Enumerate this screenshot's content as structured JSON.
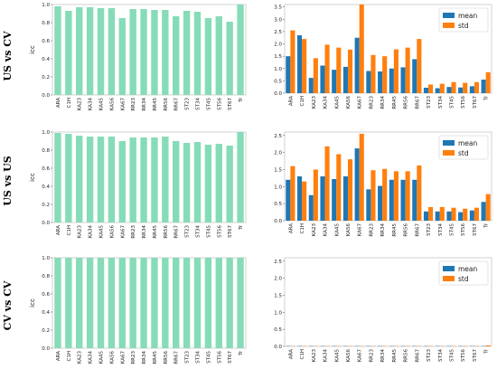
{
  "colors": {
    "icc": "#86dcb7",
    "mean": "#1f77b4",
    "std": "#ff7f0e",
    "axis": "#c8c8c8"
  },
  "rows": [
    {
      "label": "US vs CV"
    },
    {
      "label": "US vs US"
    },
    {
      "label": "CV vs CV"
    }
  ],
  "chart_data": [
    {
      "type": "bar",
      "panel": "icc-us-vs-cv",
      "categories": [
        "ARA",
        "C1H",
        "KA23",
        "KA34",
        "KA45",
        "KA56",
        "KA67",
        "RR23",
        "RR34",
        "RR45",
        "RR56",
        "RR67",
        "ST23",
        "ST34",
        "ST45",
        "ST56",
        "ST67",
        "Tr"
      ],
      "values": [
        0.98,
        0.93,
        0.97,
        0.97,
        0.96,
        0.96,
        0.85,
        0.95,
        0.95,
        0.94,
        0.94,
        0.87,
        0.93,
        0.92,
        0.85,
        0.87,
        0.81,
        1.0
      ],
      "ylabel": "icc",
      "ylim": [
        0,
        1.0
      ],
      "yticks": [
        "0.0",
        "0.2",
        "0.4",
        "0.6",
        "0.8",
        "1.0"
      ]
    },
    {
      "type": "bar",
      "panel": "meanstd-us-vs-cv",
      "categories": [
        "ARA",
        "C1H",
        "KA23",
        "KA34",
        "KA45",
        "KA56",
        "KA67",
        "RR23",
        "RR34",
        "RR45",
        "RR56",
        "RR67",
        "ST23",
        "ST34",
        "ST45",
        "ST56",
        "ST67",
        "Tr"
      ],
      "series": [
        {
          "name": "mean",
          "values": [
            1.5,
            2.35,
            0.62,
            1.12,
            0.95,
            1.07,
            2.25,
            0.9,
            0.88,
            1.0,
            1.05,
            1.38,
            0.22,
            0.2,
            0.25,
            0.23,
            0.28,
            0.55
          ]
        },
        {
          "name": "std",
          "values": [
            2.55,
            2.2,
            1.42,
            1.97,
            1.85,
            1.77,
            3.6,
            1.55,
            1.5,
            1.78,
            1.85,
            2.2,
            0.35,
            0.38,
            0.45,
            0.42,
            0.45,
            0.85
          ]
        }
      ],
      "ylim": [
        0,
        3.6
      ],
      "yticks": [
        "0.0",
        "0.5",
        "1.0",
        "1.5",
        "2.0",
        "2.5",
        "3.0",
        "3.5"
      ],
      "legend": "top-right"
    },
    {
      "type": "bar",
      "panel": "icc-us-vs-us",
      "categories": [
        "ARA",
        "C1H",
        "KA23",
        "KA34",
        "KA45",
        "KA56",
        "KA67",
        "RR23",
        "RR34",
        "RR45",
        "RR56",
        "RR67",
        "ST23",
        "ST34",
        "ST45",
        "ST56",
        "ST67",
        "Tr"
      ],
      "values": [
        0.99,
        0.98,
        0.96,
        0.95,
        0.95,
        0.95,
        0.9,
        0.94,
        0.94,
        0.94,
        0.95,
        0.9,
        0.88,
        0.89,
        0.86,
        0.87,
        0.85,
        1.0
      ],
      "ylabel": "icc",
      "ylim": [
        0,
        1.0
      ],
      "yticks": [
        "0.0",
        "0.2",
        "0.4",
        "0.6",
        "0.8",
        "1.0"
      ]
    },
    {
      "type": "bar",
      "panel": "meanstd-us-vs-us",
      "categories": [
        "ARA",
        "C1H",
        "KA23",
        "KA34",
        "KA45",
        "KA56",
        "KA67",
        "RR23",
        "RR34",
        "RR45",
        "RR56",
        "RR67",
        "ST23",
        "ST34",
        "ST45",
        "ST56",
        "ST67",
        "Tr"
      ],
      "series": [
        {
          "name": "mean",
          "values": [
            1.2,
            1.3,
            0.75,
            1.3,
            1.22,
            1.3,
            2.12,
            0.92,
            1.02,
            1.2,
            1.2,
            1.2,
            0.27,
            0.27,
            0.27,
            0.25,
            0.3,
            0.55
          ]
        },
        {
          "name": "std",
          "values": [
            1.6,
            1.15,
            1.5,
            2.18,
            1.95,
            1.8,
            2.55,
            1.48,
            1.52,
            1.45,
            1.45,
            1.62,
            0.4,
            0.4,
            0.38,
            0.35,
            0.38,
            0.78
          ]
        }
      ],
      "ylim": [
        0,
        2.6
      ],
      "yticks": [
        "0.0",
        "0.5",
        "1.0",
        "1.5",
        "2.0",
        "2.5"
      ],
      "legend": "top-right"
    },
    {
      "type": "bar",
      "panel": "icc-cv-vs-cv",
      "categories": [
        "ARA",
        "C1H",
        "KA23",
        "KA34",
        "KA45",
        "KA56",
        "KA67",
        "RR23",
        "RR34",
        "RR45",
        "RR56",
        "RR67",
        "ST23",
        "ST34",
        "ST45",
        "ST56",
        "ST67",
        "Tr"
      ],
      "values": [
        1.0,
        1.0,
        1.0,
        1.0,
        1.0,
        1.0,
        1.0,
        1.0,
        1.0,
        1.0,
        1.0,
        1.0,
        1.0,
        1.0,
        1.0,
        1.0,
        1.0,
        1.0
      ],
      "ylabel": "icc",
      "ylim": [
        0,
        1.0
      ],
      "yticks": [
        "0.0",
        "0.2",
        "0.4",
        "0.6",
        "0.8",
        "1.0"
      ]
    },
    {
      "type": "bar",
      "panel": "meanstd-cv-vs-cv",
      "categories": [
        "ARA",
        "C1H",
        "KA23",
        "KA34",
        "KA45",
        "KA56",
        "KA67",
        "RR23",
        "RR34",
        "RR45",
        "RR56",
        "RR67",
        "ST23",
        "ST34",
        "ST45",
        "ST56",
        "ST67",
        "Tr"
      ],
      "series": [
        {
          "name": "mean",
          "values": [
            0.01,
            0.01,
            0.01,
            0.01,
            0.01,
            0.01,
            0.01,
            0.01,
            0.01,
            0.01,
            0.01,
            0.01,
            0.01,
            0.01,
            0.01,
            0.01,
            0.01,
            0.01
          ]
        },
        {
          "name": "std",
          "values": [
            0.01,
            0.01,
            0.01,
            0.01,
            0.01,
            0.01,
            0.01,
            0.01,
            0.01,
            0.01,
            0.01,
            0.01,
            0.01,
            0.01,
            0.01,
            0.01,
            0.01,
            0.03
          ]
        }
      ],
      "ylim": [
        0,
        2.6
      ],
      "yticks": [
        "0.0",
        "0.5",
        "1.0",
        "1.5",
        "2.0",
        "2.5"
      ],
      "legend": "top-right"
    }
  ]
}
